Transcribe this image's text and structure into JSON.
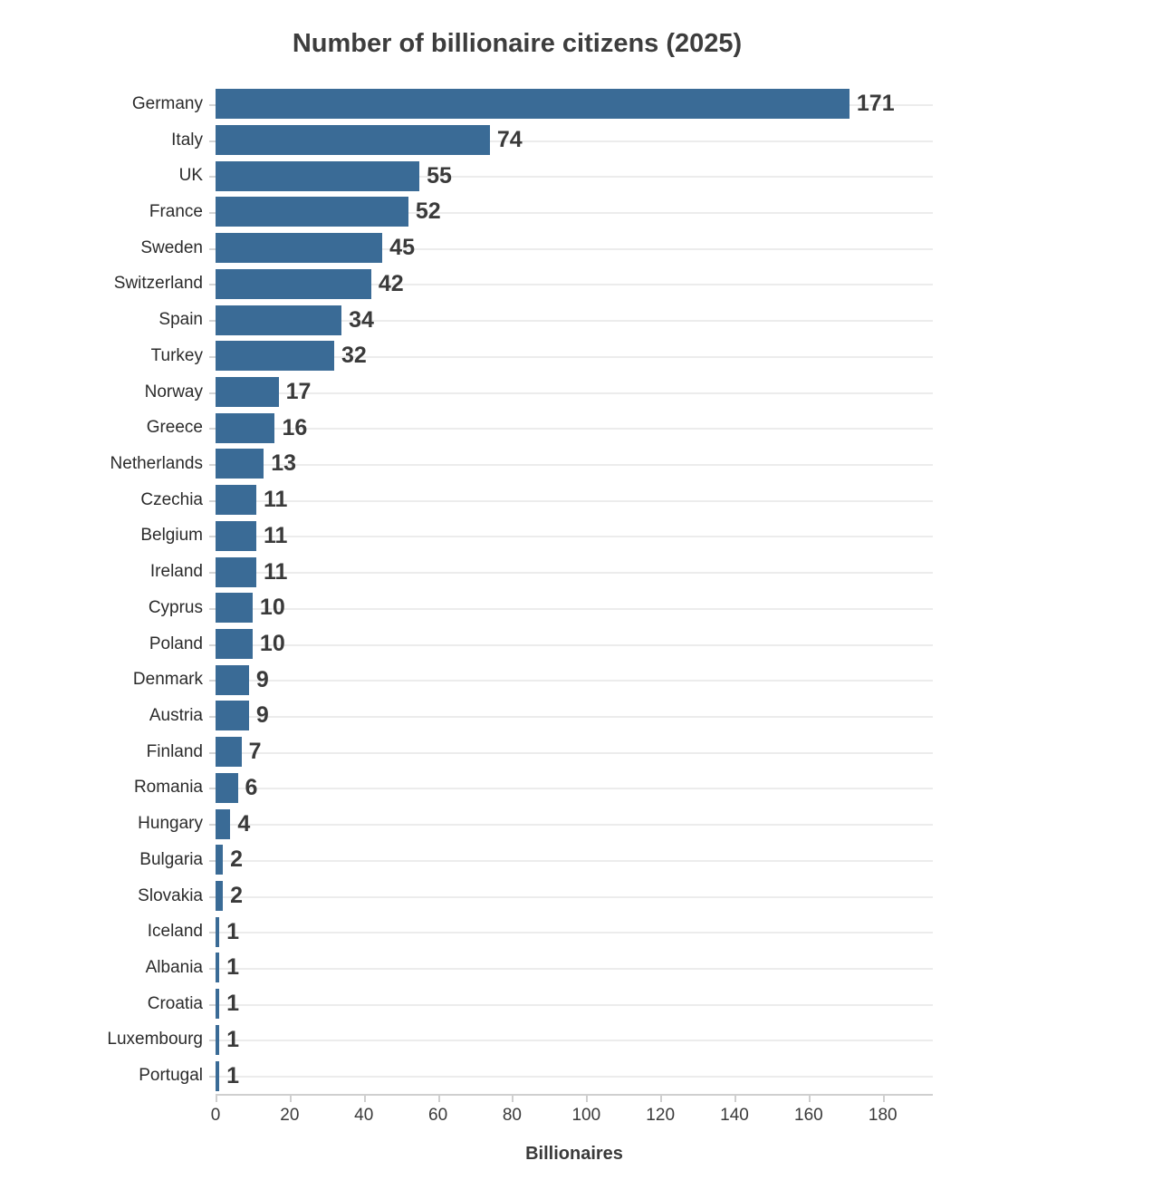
{
  "title": "Number of billionaire citizens (2025)",
  "colors": {
    "bar": "#3a6b96",
    "title_text": "#3d3d3d",
    "category_label_text": "#2b2b2b",
    "value_label_text": "#3a3a3a",
    "tick_label_text": "#3a3a3a",
    "gridline": "#ececec",
    "axis_line": "#cfcfcf",
    "background": "#ffffff"
  },
  "chart_data": {
    "type": "bar",
    "orientation": "horizontal",
    "title": "Number of billionaire citizens (2025)",
    "xlabel": "Billionaires",
    "ylabel": "",
    "categories": [
      "Germany",
      "Italy",
      "UK",
      "France",
      "Sweden",
      "Switzerland",
      "Spain",
      "Turkey",
      "Norway",
      "Greece",
      "Netherlands",
      "Czechia",
      "Belgium",
      "Ireland",
      "Cyprus",
      "Poland",
      "Denmark",
      "Austria",
      "Finland",
      "Romania",
      "Hungary",
      "Bulgaria",
      "Slovakia",
      "Iceland",
      "Albania",
      "Croatia",
      "Luxembourg",
      "Portugal"
    ],
    "values": [
      171,
      74,
      55,
      52,
      45,
      42,
      34,
      32,
      17,
      16,
      13,
      11,
      11,
      11,
      10,
      10,
      9,
      9,
      7,
      6,
      4,
      2,
      2,
      1,
      1,
      1,
      1,
      1
    ],
    "xlim": [
      0,
      193.5
    ],
    "xticks": [
      0,
      20,
      40,
      60,
      80,
      100,
      120,
      140,
      160,
      180
    ],
    "grid": "horizontal-category-lines",
    "value_labels": true,
    "legend": "none"
  }
}
